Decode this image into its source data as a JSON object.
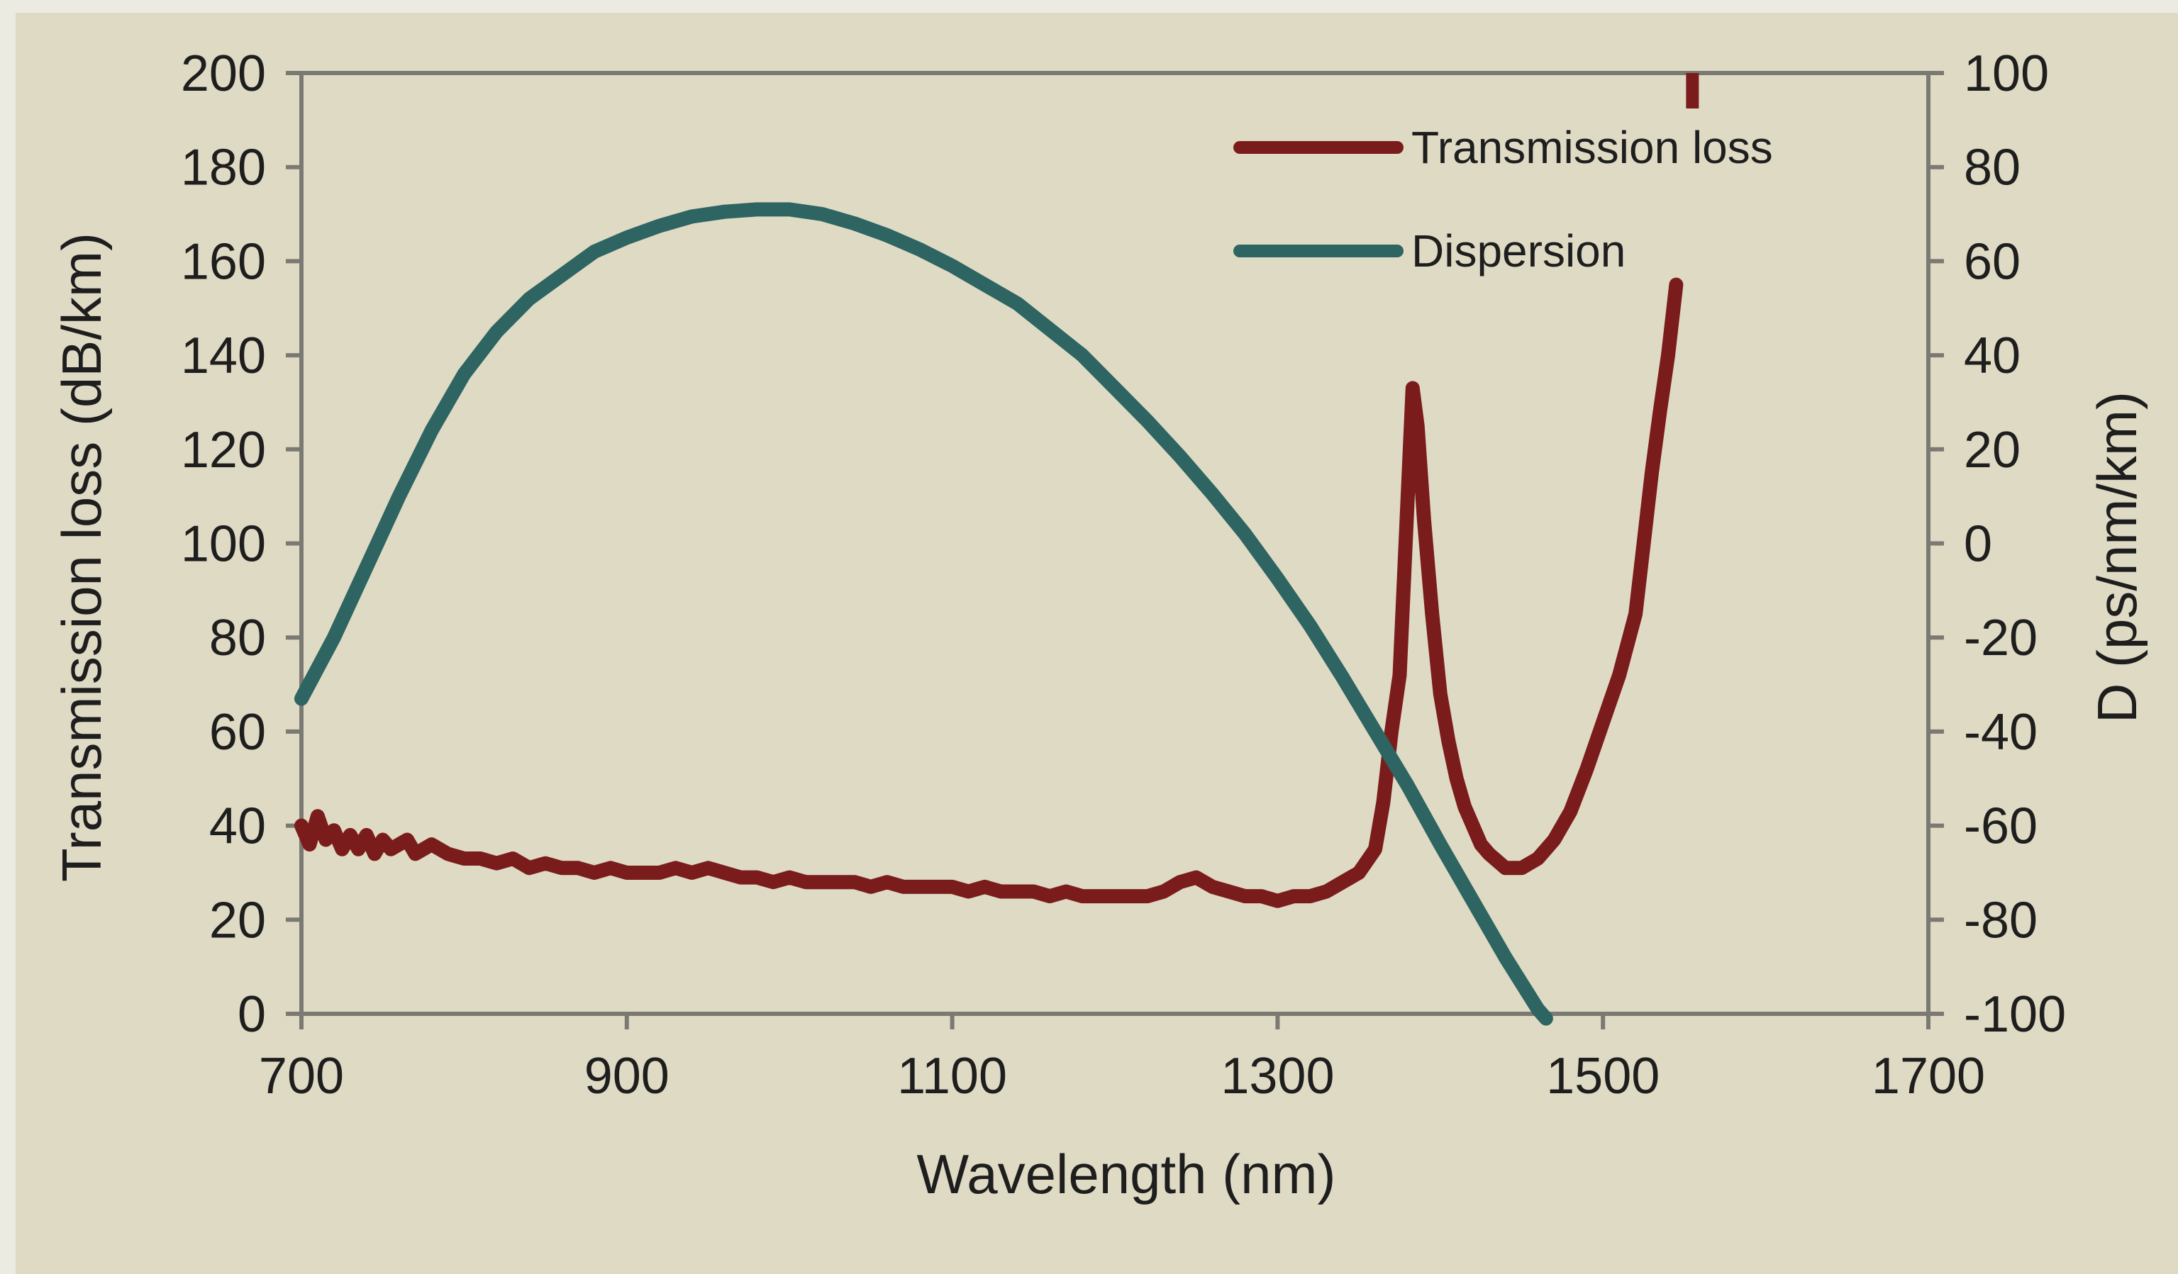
{
  "colors": {
    "background": "#dedac4",
    "outer_background": "#ecebe2",
    "axis": "#7a7a72",
    "text": "#1e1e1e",
    "transmission_loss": "#7b1c1c",
    "dispersion": "#2e6461"
  },
  "chart_data": {
    "type": "line",
    "xlabel": "Wavelength (nm)",
    "ylabel": "Transmission loss (dB/km)",
    "y2label": "D (ps/nm/km)",
    "xlim": [
      700,
      1700
    ],
    "ylim": [
      0,
      200
    ],
    "y2lim": [
      -100,
      100
    ],
    "x_ticks": [
      "700",
      "900",
      "1100",
      "1300",
      "1500",
      "1700"
    ],
    "y_ticks": [
      "0",
      "20",
      "40",
      "60",
      "80",
      "100",
      "120",
      "140",
      "160",
      "180",
      "200"
    ],
    "y2_ticks": [
      "-100",
      "-80",
      "-60",
      "-40",
      "-20",
      "0",
      "20",
      "40",
      "60",
      "80",
      "100"
    ],
    "grid": false,
    "legend_position": "top-right",
    "series": [
      {
        "name": "Transmission loss",
        "axis": "left",
        "color": "#7b1c1c",
        "x": [
          700,
          705,
          710,
          715,
          720,
          725,
          730,
          735,
          740,
          745,
          750,
          755,
          760,
          765,
          770,
          780,
          790,
          800,
          810,
          820,
          830,
          840,
          850,
          860,
          870,
          880,
          890,
          900,
          910,
          920,
          930,
          940,
          950,
          960,
          970,
          980,
          990,
          1000,
          1010,
          1020,
          1030,
          1040,
          1050,
          1060,
          1070,
          1080,
          1090,
          1100,
          1110,
          1120,
          1130,
          1140,
          1150,
          1160,
          1170,
          1180,
          1190,
          1200,
          1210,
          1220,
          1230,
          1240,
          1250,
          1260,
          1270,
          1280,
          1290,
          1300,
          1310,
          1320,
          1330,
          1340,
          1350,
          1360,
          1365,
          1370,
          1375,
          1380,
          1383,
          1386,
          1390,
          1395,
          1400,
          1405,
          1410,
          1415,
          1420,
          1425,
          1430,
          1440,
          1450,
          1460,
          1470,
          1480,
          1490,
          1500,
          1510,
          1520,
          1525,
          1530,
          1535,
          1540,
          1545
        ],
        "y": [
          40,
          36,
          42,
          37,
          39,
          35,
          38,
          35,
          38,
          34,
          37,
          35,
          36,
          37,
          34,
          36,
          34,
          33,
          33,
          32,
          33,
          31,
          32,
          31,
          31,
          30,
          31,
          30,
          30,
          30,
          31,
          30,
          31,
          30,
          29,
          29,
          28,
          29,
          28,
          28,
          28,
          28,
          27,
          28,
          27,
          27,
          27,
          27,
          26,
          27,
          26,
          26,
          26,
          25,
          26,
          25,
          25,
          25,
          25,
          25,
          26,
          28,
          29,
          27,
          26,
          25,
          25,
          24,
          25,
          25,
          26,
          28,
          30,
          35,
          45,
          60,
          72,
          110,
          133,
          125,
          105,
          85,
          68,
          58,
          50,
          44,
          40,
          36,
          34,
          31,
          31,
          33,
          37,
          43,
          52,
          62,
          72,
          85,
          100,
          115,
          128,
          140,
          155
        ]
      },
      {
        "name": "Dispersion",
        "axis": "right",
        "color": "#2e6461",
        "x": [
          700,
          720,
          740,
          760,
          780,
          800,
          820,
          840,
          860,
          880,
          900,
          920,
          940,
          960,
          980,
          1000,
          1020,
          1040,
          1060,
          1080,
          1100,
          1120,
          1140,
          1160,
          1180,
          1200,
          1220,
          1240,
          1260,
          1280,
          1300,
          1320,
          1340,
          1360,
          1380,
          1400,
          1420,
          1440,
          1460,
          1465
        ],
        "y": [
          -33,
          -20,
          -5,
          10,
          24,
          36,
          45,
          52,
          57,
          62,
          65,
          67.5,
          69.5,
          70.5,
          71,
          71,
          70,
          68,
          65.5,
          62.5,
          59,
          55,
          51,
          45.5,
          40,
          33,
          26,
          18.5,
          10.5,
          2,
          -7.5,
          -17.5,
          -28.5,
          -40,
          -51.5,
          -64,
          -76,
          -88,
          -99,
          -101
        ]
      }
    ]
  }
}
